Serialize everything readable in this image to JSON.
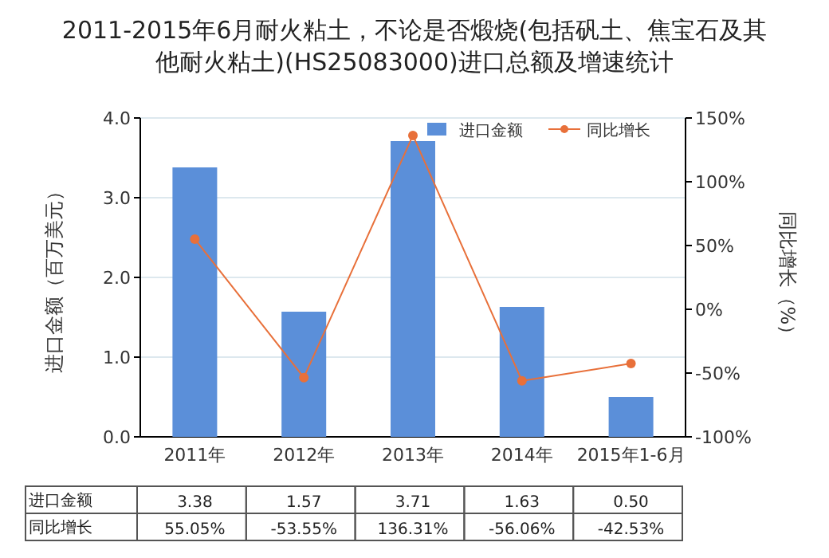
{
  "chart_data": {
    "type": "bar",
    "title": "2011-2015年6月耐火粘土，不论是否煅烧(包括矾土、焦宝石及其他耐火粘土)(HS25083000)进口总额及增速统计",
    "ylabel": "进口金额（百万美元）",
    "y2label": "同比增长（%）",
    "categories": [
      "2011年",
      "2012年",
      "2013年",
      "2014年",
      "2015年1-6月"
    ],
    "series": [
      {
        "name": "进口金额",
        "color": "#5b8fd9",
        "values": [
          3.38,
          1.57,
          3.71,
          1.63,
          0.5
        ],
        "value_labels": [
          "3.38",
          "1.57",
          "3.71",
          "1.63",
          "0.50"
        ]
      },
      {
        "name": "同比增长",
        "type": "line",
        "axis": "y2",
        "color": "#e8703a",
        "marker": "circle",
        "values": [
          55.05,
          -53.55,
          136.31,
          -56.06,
          -42.53
        ],
        "value_labels": [
          "55.05%",
          "-53.55%",
          "136.31%",
          "-56.06%",
          "-42.53%"
        ]
      }
    ],
    "ylim": [
      0,
      4
    ],
    "yticks": [
      {
        "value": 0,
        "label": "0.0"
      },
      {
        "value": 1,
        "label": "1.0"
      },
      {
        "value": 2,
        "label": "2.0"
      },
      {
        "value": 3,
        "label": "3.0"
      },
      {
        "value": 4,
        "label": "4.0"
      }
    ],
    "y2lim": [
      -100,
      150
    ],
    "y2ticks": [
      {
        "value": -100,
        "label": "-100%"
      },
      {
        "value": -50,
        "label": "-50%"
      },
      {
        "value": 0,
        "label": "0%"
      },
      {
        "value": 50,
        "label": "50%"
      },
      {
        "value": 100,
        "label": "100%"
      },
      {
        "value": 150,
        "label": "150%"
      }
    ],
    "grid": "y",
    "legend": "top"
  }
}
